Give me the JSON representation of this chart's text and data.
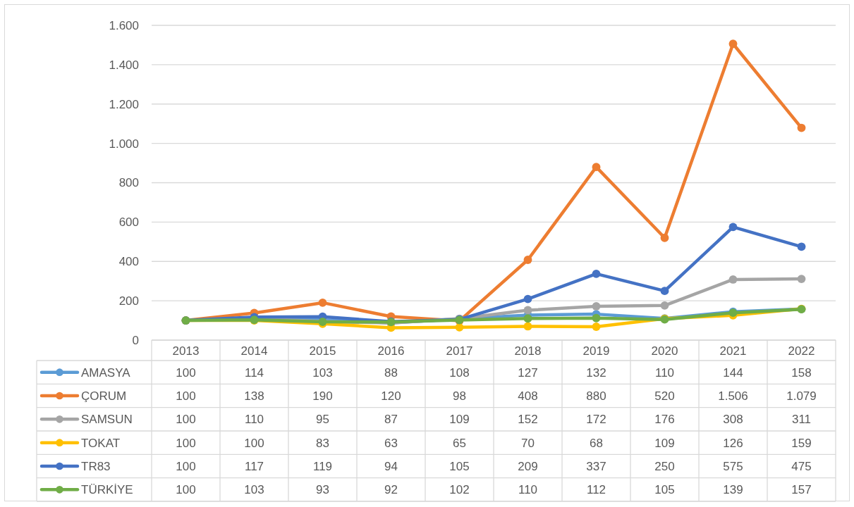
{
  "chart_data": {
    "type": "line",
    "categories": [
      "2013",
      "2014",
      "2015",
      "2016",
      "2017",
      "2018",
      "2019",
      "2020",
      "2021",
      "2022"
    ],
    "series": [
      {
        "name": "AMASYA",
        "color": "#5b9bd5",
        "values": [
          100,
          114,
          103,
          88,
          108,
          127,
          132,
          110,
          144,
          158
        ],
        "value_labels": [
          "100",
          "114",
          "103",
          "88",
          "108",
          "127",
          "132",
          "110",
          "144",
          "158"
        ]
      },
      {
        "name": "ÇORUM",
        "color": "#ed7d31",
        "values": [
          100,
          138,
          190,
          120,
          98,
          408,
          880,
          520,
          1506,
          1079
        ],
        "value_labels": [
          "100",
          "138",
          "190",
          "120",
          "98",
          "408",
          "880",
          "520",
          "1.506",
          "1.079"
        ]
      },
      {
        "name": "SAMSUN",
        "color": "#a5a5a5",
        "values": [
          100,
          110,
          95,
          87,
          109,
          152,
          172,
          176,
          308,
          311
        ],
        "value_labels": [
          "100",
          "110",
          "95",
          "87",
          "109",
          "152",
          "172",
          "176",
          "308",
          "311"
        ]
      },
      {
        "name": "TOKAT",
        "color": "#ffc000",
        "values": [
          100,
          100,
          83,
          63,
          65,
          70,
          68,
          109,
          126,
          159
        ],
        "value_labels": [
          "100",
          "100",
          "83",
          "63",
          "65",
          "70",
          "68",
          "109",
          "126",
          "159"
        ]
      },
      {
        "name": "TR83",
        "color": "#4472c4",
        "values": [
          100,
          117,
          119,
          94,
          105,
          209,
          337,
          250,
          575,
          475
        ],
        "value_labels": [
          "100",
          "117",
          "119",
          "94",
          "105",
          "209",
          "337",
          "250",
          "575",
          "475"
        ]
      },
      {
        "name": "TÜRKİYE",
        "color": "#70ad47",
        "values": [
          100,
          103,
          93,
          92,
          102,
          110,
          112,
          105,
          139,
          157
        ],
        "value_labels": [
          "100",
          "103",
          "93",
          "92",
          "102",
          "110",
          "112",
          "105",
          "139",
          "157"
        ]
      }
    ],
    "ylim": [
      0,
      1600
    ],
    "yticks": [
      0,
      200,
      400,
      600,
      800,
      {
        "value": 1000,
        "label": "1.000"
      },
      {
        "value": 1200,
        "label": "1.200"
      },
      {
        "value": 1400,
        "label": "1.400"
      },
      {
        "value": 1600,
        "label": "1.600"
      }
    ],
    "grid": "y",
    "legend": "bottom",
    "marker": "circle"
  }
}
